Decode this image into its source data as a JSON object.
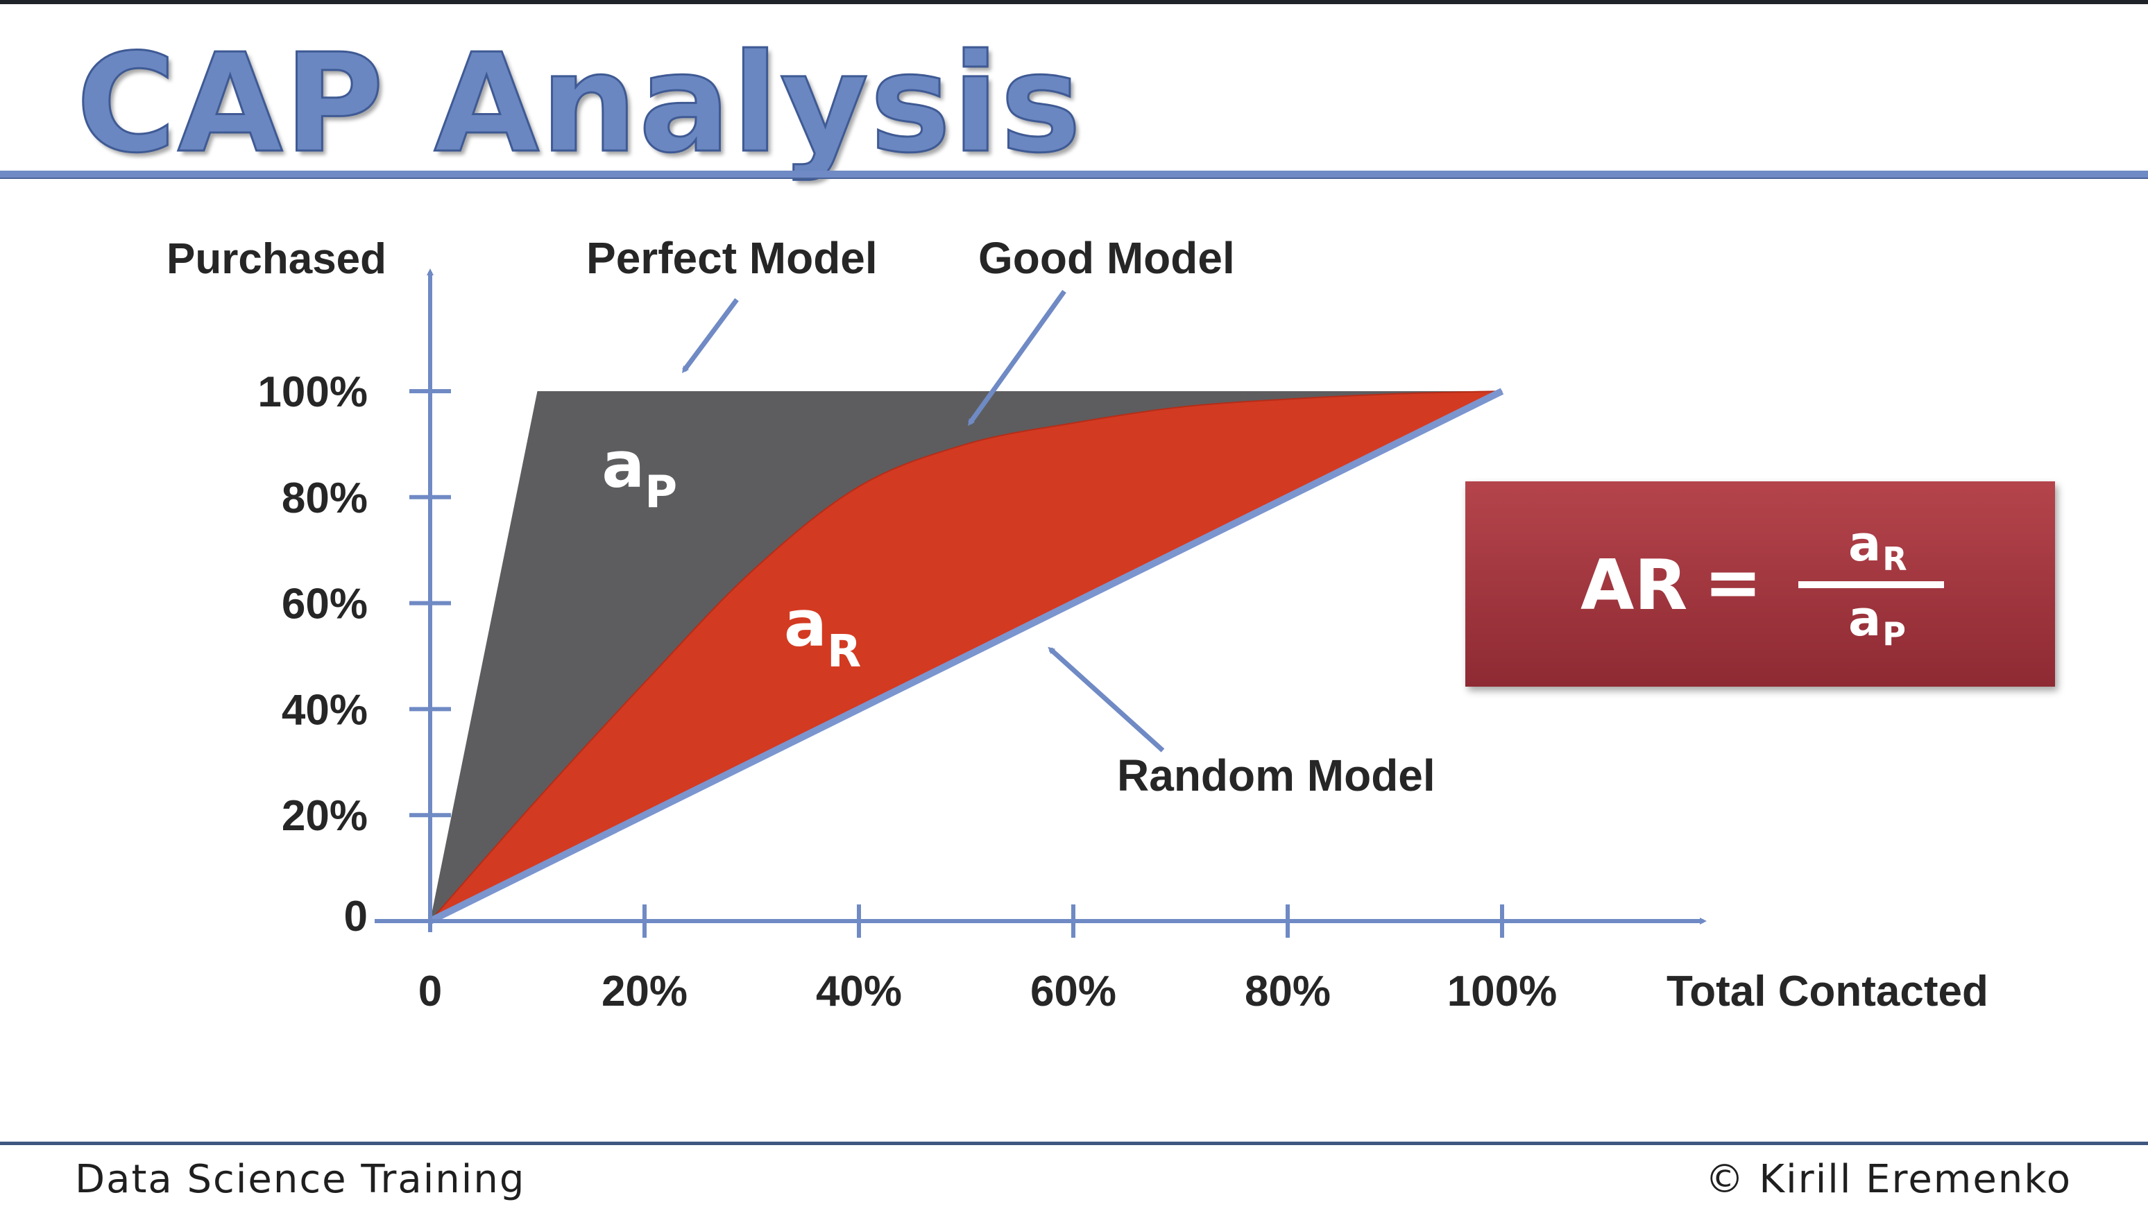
{
  "slide": {
    "title": "CAP Analysis",
    "footer_left": "Data Science Training",
    "footer_right": "© Kirill Eremenko"
  },
  "formula": {
    "lhs": "AR",
    "equals": "=",
    "numerator": "a",
    "numerator_sub": "R",
    "denominator": "a",
    "denominator_sub": "P"
  },
  "colors": {
    "title": "#6a87c2",
    "axis": "#6f8ac4",
    "perfect_area": "#5d5d5f",
    "good_area": "#d33a22",
    "formula_box": "#a53a43"
  },
  "chart_data": {
    "type": "area",
    "xlabel": "Total Contacted",
    "ylabel": "Purchased",
    "xlim": [
      0,
      100
    ],
    "ylim": [
      0,
      100
    ],
    "x_ticks": [
      "0",
      "20%",
      "40%",
      "60%",
      "80%",
      "100%"
    ],
    "y_ticks": [
      "0",
      "20%",
      "40%",
      "60%",
      "80%",
      "100%"
    ],
    "series": [
      {
        "name": "Perfect Model",
        "x": [
          0,
          10,
          100
        ],
        "y": [
          0,
          100,
          100
        ],
        "color": "#5d5d5f"
      },
      {
        "name": "Good Model",
        "x": [
          0,
          10,
          20,
          30,
          40,
          50,
          60,
          70,
          80,
          90,
          100
        ],
        "y": [
          0,
          23,
          45,
          66,
          82,
          90,
          94,
          97,
          98.5,
          99.5,
          100
        ],
        "color": "#d33a22"
      },
      {
        "name": "Random Model",
        "x": [
          0,
          100
        ],
        "y": [
          0,
          100
        ],
        "color": "#7b95cf"
      }
    ],
    "area_labels": [
      {
        "text": "a",
        "sub": "P",
        "x": 16,
        "y": 82
      },
      {
        "text": "a",
        "sub": "R",
        "x": 33,
        "y": 52
      }
    ]
  }
}
